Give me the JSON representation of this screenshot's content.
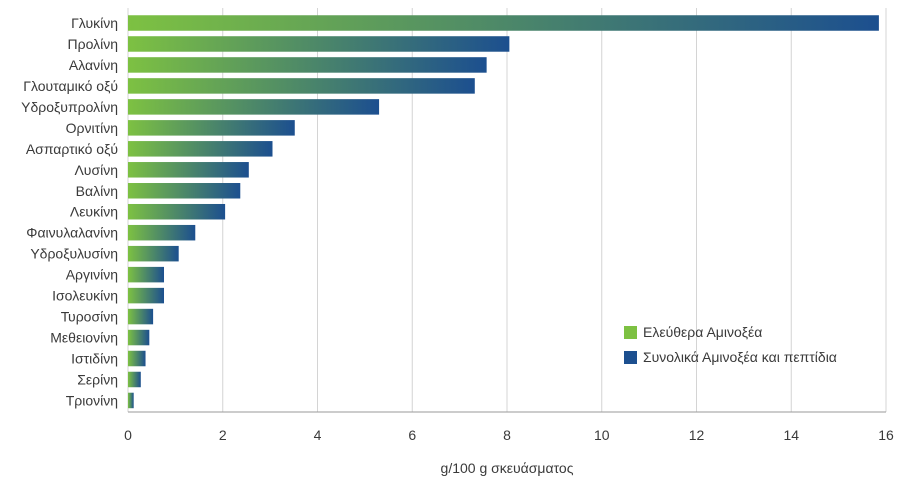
{
  "chart_data": {
    "type": "bar",
    "orientation": "horizontal",
    "xlabel": "g/100 g σκευάσματος",
    "xlim": [
      0,
      16
    ],
    "xticks": [
      0,
      2,
      4,
      6,
      8,
      10,
      12,
      14,
      16
    ],
    "grid": "vertical",
    "legend_position": "bottom-right",
    "categories": [
      "Γλυκίνη",
      "Προλίνη",
      "Αλανίνη",
      "Γλουταμικό οξύ",
      "Υδροξυπρολίνη",
      "Ορνιτίνη",
      "Ασπαρτικό οξύ",
      "Λυσίνη",
      "Βαλίνη",
      "Λευκίνη",
      "Φαινυλαλανίνη",
      "Υδροξυλυσίνη",
      "Αργινίνη",
      "Ισολευκίνη",
      "Τυροσίνη",
      "Μεθειονίνη",
      "Ιστιδίνη",
      "Σερίνη",
      "Τριονίνη"
    ],
    "values": [
      15.85,
      8.05,
      7.57,
      7.32,
      5.3,
      3.52,
      3.05,
      2.55,
      2.37,
      2.05,
      1.42,
      1.07,
      0.76,
      0.76,
      0.53,
      0.45,
      0.37,
      0.27,
      0.12
    ],
    "series": [
      {
        "name": "Ελεύθερα Αμινοξέα",
        "color": "#7dc142"
      },
      {
        "name": "Συνολικά Αμινοξέα και πεπτίδια",
        "color": "#1c4f8f"
      }
    ]
  }
}
